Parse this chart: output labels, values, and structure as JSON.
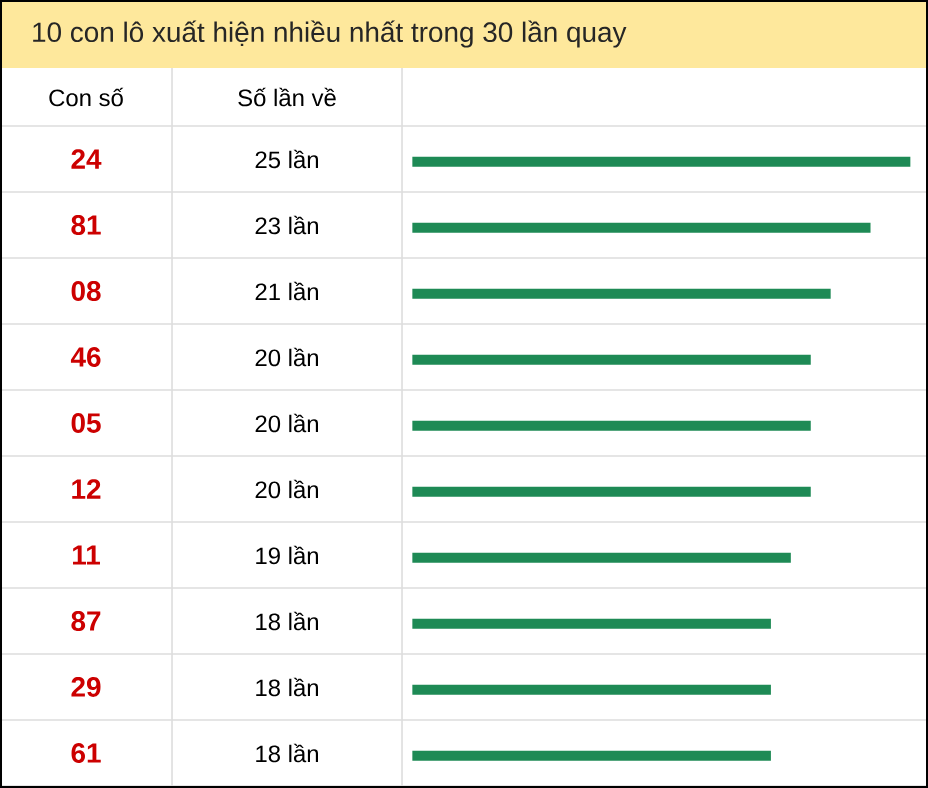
{
  "chart_data": {
    "type": "bar",
    "orientation": "horizontal",
    "title": "10 con lô xuất hiện nhiều nhất trong 30 lần quay",
    "ylabel": "Con số",
    "xlabel": "Số lần về",
    "categories": [
      "24",
      "81",
      "08",
      "46",
      "05",
      "12",
      "11",
      "87",
      "29",
      "61"
    ],
    "values": [
      25,
      23,
      21,
      20,
      20,
      20,
      19,
      18,
      18,
      18
    ],
    "value_labels": [
      "25 lần",
      "23 lần",
      "21 lần",
      "20 lần",
      "20 lần",
      "20 lần",
      "19 lần",
      "18 lần",
      "18 lần",
      "18 lần"
    ],
    "color": "#1e8a55",
    "grid": "y"
  }
}
